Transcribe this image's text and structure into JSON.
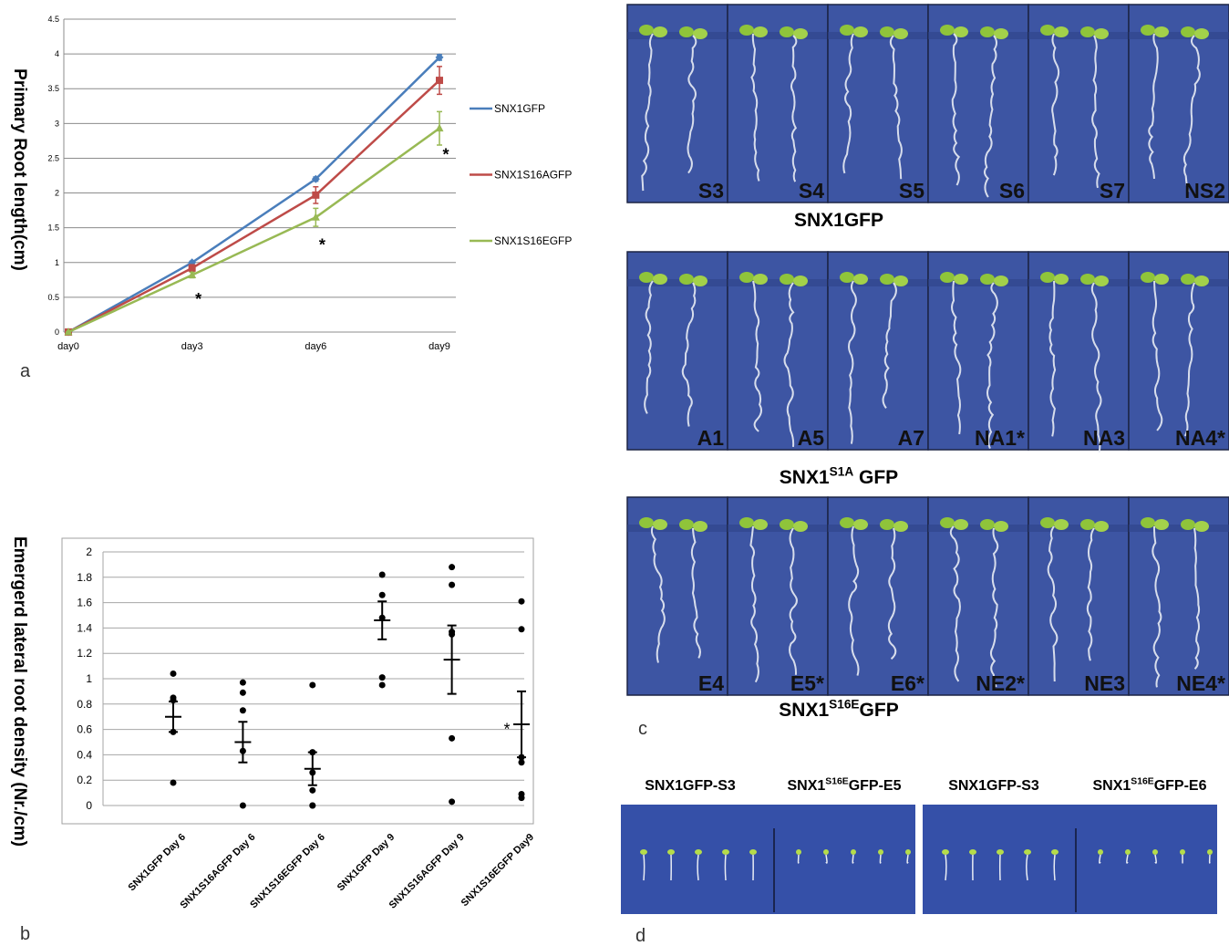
{
  "panel_labels": [
    "a",
    "b",
    "c",
    "d"
  ],
  "chart_data": [
    {
      "type": "line",
      "y_label": "Primary Root length(cm)",
      "categories": [
        "day0",
        "day3",
        "day6",
        "day9"
      ],
      "series": [
        {
          "name": "SNX1GFP",
          "color": "#4a7ebb",
          "marker": "diamond",
          "values": [
            0,
            1.0,
            2.2,
            3.95
          ],
          "errors": [
            0,
            0.02,
            0.03,
            0.04
          ]
        },
        {
          "name": "SNX1S16AGFP",
          "color": "#be4b48",
          "marker": "square",
          "values": [
            0,
            0.92,
            1.97,
            3.62
          ],
          "errors": [
            0,
            0.05,
            0.12,
            0.2
          ]
        },
        {
          "name": "SNX1S16EGFP",
          "color": "#98b954",
          "marker": "triangle",
          "values": [
            0,
            0.82,
            1.65,
            2.93
          ],
          "errors": [
            0,
            0.04,
            0.13,
            0.24
          ]
        }
      ],
      "ylim": [
        0,
        4.5
      ],
      "yticks": [
        0,
        0.5,
        1,
        1.5,
        2,
        2.5,
        3,
        3.5,
        4,
        4.5
      ],
      "grid": true,
      "annotations": [
        {
          "text": "*",
          "x": "day3",
          "y": 0.5
        },
        {
          "text": "*",
          "x": "day6",
          "y": 1.28
        },
        {
          "text": "*",
          "x": "day9",
          "y": 2.58
        }
      ]
    },
    {
      "type": "dot",
      "y_label": "Emergerd lateral root density (Nr./cm)",
      "categories": [
        "SNX1GFP Day 6",
        "SNX1S16AGFP Day 6",
        "SNX1S16EGFP Day 6",
        "SNX1GFP Day 9",
        "SNX1S16AGFP Day 9",
        "SNX1S16EGFP Day9"
      ],
      "points": [
        [
          1.04,
          0.85,
          0.83,
          0.58,
          0.18
        ],
        [
          0.97,
          0.89,
          0.75,
          0.43,
          0.0
        ],
        [
          0.95,
          0.42,
          0.26,
          0.12,
          0.0,
          0.0
        ],
        [
          1.82,
          1.66,
          1.48,
          1.01,
          0.95
        ],
        [
          1.88,
          1.74,
          1.37,
          1.35,
          0.53,
          0.03
        ],
        [
          1.61,
          1.39,
          0.38,
          0.34,
          0.09,
          0.06
        ]
      ],
      "mean": [
        0.7,
        0.5,
        0.29,
        1.46,
        1.15,
        0.64
      ],
      "error": [
        0.12,
        0.16,
        0.13,
        0.15,
        0.27,
        0.26
      ],
      "color": "#000000",
      "ylim": [
        0,
        2
      ],
      "yticks": [
        0,
        0.2,
        0.4,
        0.6,
        0.8,
        1,
        1.2,
        1.4,
        1.6,
        1.8,
        2
      ],
      "grid": true,
      "annotations": [
        {
          "text": "*",
          "x": "SNX1S16EGFP Day9",
          "y": 0.63
        }
      ]
    }
  ],
  "photos": {
    "rows": [
      {
        "labels": [
          "S3",
          "S4",
          "S5",
          "S6",
          "S7",
          "NS2"
        ],
        "title": {
          "base": "SNX1GFP",
          "sup": "",
          "suffix": ""
        }
      },
      {
        "labels": [
          "A1",
          "A5",
          "A7",
          "NA1*",
          "NA3",
          "NA4*"
        ],
        "title": {
          "base": "SNX1",
          "sup": "S1A",
          "suffix": " GFP"
        }
      },
      {
        "labels": [
          "E4",
          "E5*",
          "E6*",
          "NE2*",
          "NE3",
          "NE4*"
        ],
        "title": {
          "base": "SNX1",
          "sup": "S16E",
          "suffix": "GFP"
        }
      }
    ]
  },
  "seedlings": {
    "labels": [
      {
        "base": "SNX1GFP-S3",
        "sup": "",
        "suffix": ""
      },
      {
        "base": "SNX1",
        "sup": "S16E",
        "suffix": "GFP-E5"
      },
      {
        "base": "SNX1GFP-S3",
        "sup": "",
        "suffix": ""
      },
      {
        "base": "SNX1",
        "sup": "S16E",
        "suffix": "GFP-E6"
      }
    ]
  }
}
